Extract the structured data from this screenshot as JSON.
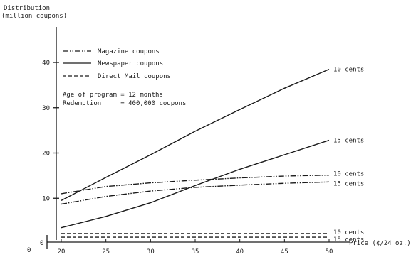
{
  "chart_data": {
    "type": "line",
    "ylabel_lines": [
      "Distribution",
      "(million coupons)"
    ],
    "xlabel": "Price (¢/24 oz.)",
    "xlim": [
      20,
      50
    ],
    "ylim": [
      0,
      40
    ],
    "x_ticks": [
      "20",
      "25",
      "30",
      "35",
      "40",
      "45",
      "50"
    ],
    "y_ticks": [
      "10",
      "20",
      "30",
      "40"
    ],
    "x_origin_label": "0",
    "y_origin_label": "0",
    "legend": {
      "entries": [
        {
          "label": "Magazine coupons",
          "style": "dashdot"
        },
        {
          "label": "Newspaper coupons",
          "style": "solid"
        },
        {
          "label": "Direct Mail coupons",
          "style": "dashed"
        }
      ],
      "notes": [
        "Age of program = 12 months",
        "Redemption     = 400,000 coupons"
      ]
    },
    "series": [
      {
        "medium": "Newspaper",
        "label": "10 cents",
        "style": "solid",
        "x": [
          20,
          25,
          30,
          35,
          40,
          45,
          50
        ],
        "y": [
          9.5,
          14.6,
          19.6,
          24.8,
          29.6,
          34.3,
          38.5
        ]
      },
      {
        "medium": "Newspaper",
        "label": "15 cents",
        "style": "solid",
        "x": [
          20,
          25,
          30,
          35,
          40,
          45,
          50
        ],
        "y": [
          3.5,
          6.0,
          9.0,
          12.8,
          16.4,
          19.6,
          22.8
        ]
      },
      {
        "medium": "Magazine",
        "label": "10 cents",
        "style": "dashdot",
        "x": [
          20,
          25,
          30,
          35,
          40,
          45,
          50
        ],
        "y": [
          11.0,
          12.6,
          13.4,
          14.0,
          14.5,
          14.9,
          15.1
        ]
      },
      {
        "medium": "Magazine",
        "label": "15 cents",
        "style": "dashdot",
        "x": [
          20,
          25,
          30,
          35,
          40,
          45,
          50
        ],
        "y": [
          8.7,
          10.4,
          11.6,
          12.4,
          12.9,
          13.3,
          13.6
        ]
      },
      {
        "medium": "Direct Mail",
        "label": "10 cents",
        "style": "dashed",
        "x": [
          20,
          25,
          30,
          35,
          40,
          45,
          50
        ],
        "y": [
          2.2,
          2.2,
          2.2,
          2.2,
          2.2,
          2.2,
          2.2
        ]
      },
      {
        "medium": "Direct Mail",
        "label": "15 cents",
        "style": "dashed",
        "x": [
          20,
          25,
          30,
          35,
          40,
          45,
          50
        ],
        "y": [
          1.4,
          1.4,
          1.4,
          1.4,
          1.4,
          1.4,
          1.4
        ]
      }
    ]
  }
}
